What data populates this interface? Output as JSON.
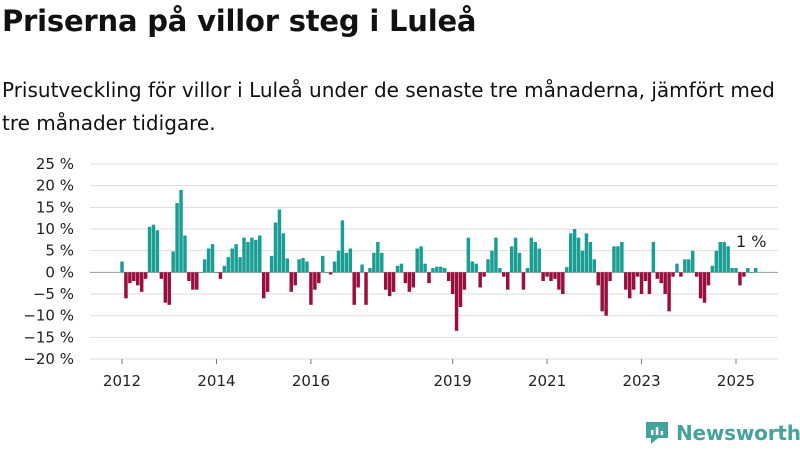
{
  "header": {
    "title": "Priserna på villor steg i Luleå",
    "subtitle": "Prisutveckling för villor i Luleå under de senaste tre månaderna, jämfört med tre månader tidigare."
  },
  "brand": {
    "name": "Newsworthy",
    "icon": "newsworthy-logo-icon",
    "color": "#44a39a"
  },
  "chart_data": {
    "type": "bar",
    "title": "",
    "xlabel": "",
    "ylabel": "",
    "ylim": [
      -20,
      25
    ],
    "xlim": [
      2011.5,
      2025.75
    ],
    "grid": true,
    "colors": {
      "positive": "#1a9e94",
      "negative": "#990e3c"
    },
    "y_ticks": [
      {
        "value": 25,
        "label": "25 %"
      },
      {
        "value": 20,
        "label": "20 %"
      },
      {
        "value": 15,
        "label": "15 %"
      },
      {
        "value": 10,
        "label": "10 %"
      },
      {
        "value": 5,
        "label": "5 %"
      },
      {
        "value": 0,
        "label": "0 %"
      },
      {
        "value": -5,
        "label": "−5 %"
      },
      {
        "value": -10,
        "label": "−10 %"
      },
      {
        "value": -15,
        "label": "−15 %"
      },
      {
        "value": -20,
        "label": "−20 %"
      }
    ],
    "x_ticks": [
      {
        "value": 2012,
        "label": "2012"
      },
      {
        "value": 2014,
        "label": "2014"
      },
      {
        "value": 2016,
        "label": "2016"
      },
      {
        "value": 2019,
        "label": "2019"
      },
      {
        "value": 2021,
        "label": "2021"
      },
      {
        "value": 2023,
        "label": "2023"
      },
      {
        "value": 2025,
        "label": "2025"
      }
    ],
    "annotation": {
      "x": 2025.17,
      "y": 1,
      "label": "1 %"
    },
    "start": "2012-01",
    "values": [
      2.5,
      -6,
      -2.5,
      -2,
      -3,
      -4.5,
      -1.5,
      10.5,
      11,
      9.7,
      -1.5,
      -7,
      -7.5,
      4.8,
      16,
      19,
      8.5,
      -2,
      -4,
      -4,
      0,
      3,
      5.5,
      6.5,
      0,
      -1.5,
      1.5,
      3.5,
      5.5,
      6.5,
      3.5,
      8,
      7,
      8,
      7.5,
      8.5,
      -6,
      -4.5,
      3.8,
      11.5,
      14.5,
      9,
      3.2,
      -4.5,
      -3,
      3,
      3.3,
      2.5,
      -7.5,
      -4,
      -2.5,
      3.8,
      0,
      -0.5,
      2.5,
      5,
      12,
      4.5,
      5.5,
      -7.5,
      -3.5,
      1.8,
      -7.5,
      1,
      4.5,
      7,
      4.5,
      -4,
      -5.5,
      -4.5,
      1.5,
      2,
      -2.5,
      -4.5,
      -3.5,
      5.5,
      6,
      2,
      -2.5,
      1,
      1.3,
      1.3,
      1,
      -2,
      -5,
      -13.5,
      -8,
      -4,
      8,
      2.5,
      2,
      -3.5,
      -1,
      3,
      5,
      8,
      1,
      -1,
      -4,
      6,
      8,
      4.5,
      -4,
      1,
      8,
      7,
      5.5,
      -2,
      -1,
      -2,
      -1.5,
      -4,
      -5,
      1.2,
      9,
      10,
      8,
      5,
      9,
      7,
      3,
      -3,
      -9,
      -10,
      -2,
      6,
      6,
      7,
      -4,
      -6,
      -4,
      -1,
      -5,
      -2,
      -5,
      7,
      -1.5,
      -2.5,
      -5,
      -9,
      -1,
      2,
      -1,
      3,
      3,
      5,
      -1,
      -6,
      -7,
      -3,
      1.5,
      5,
      7,
      7,
      6,
      1,
      1,
      -3,
      -1,
      1,
      0,
      1
    ]
  }
}
